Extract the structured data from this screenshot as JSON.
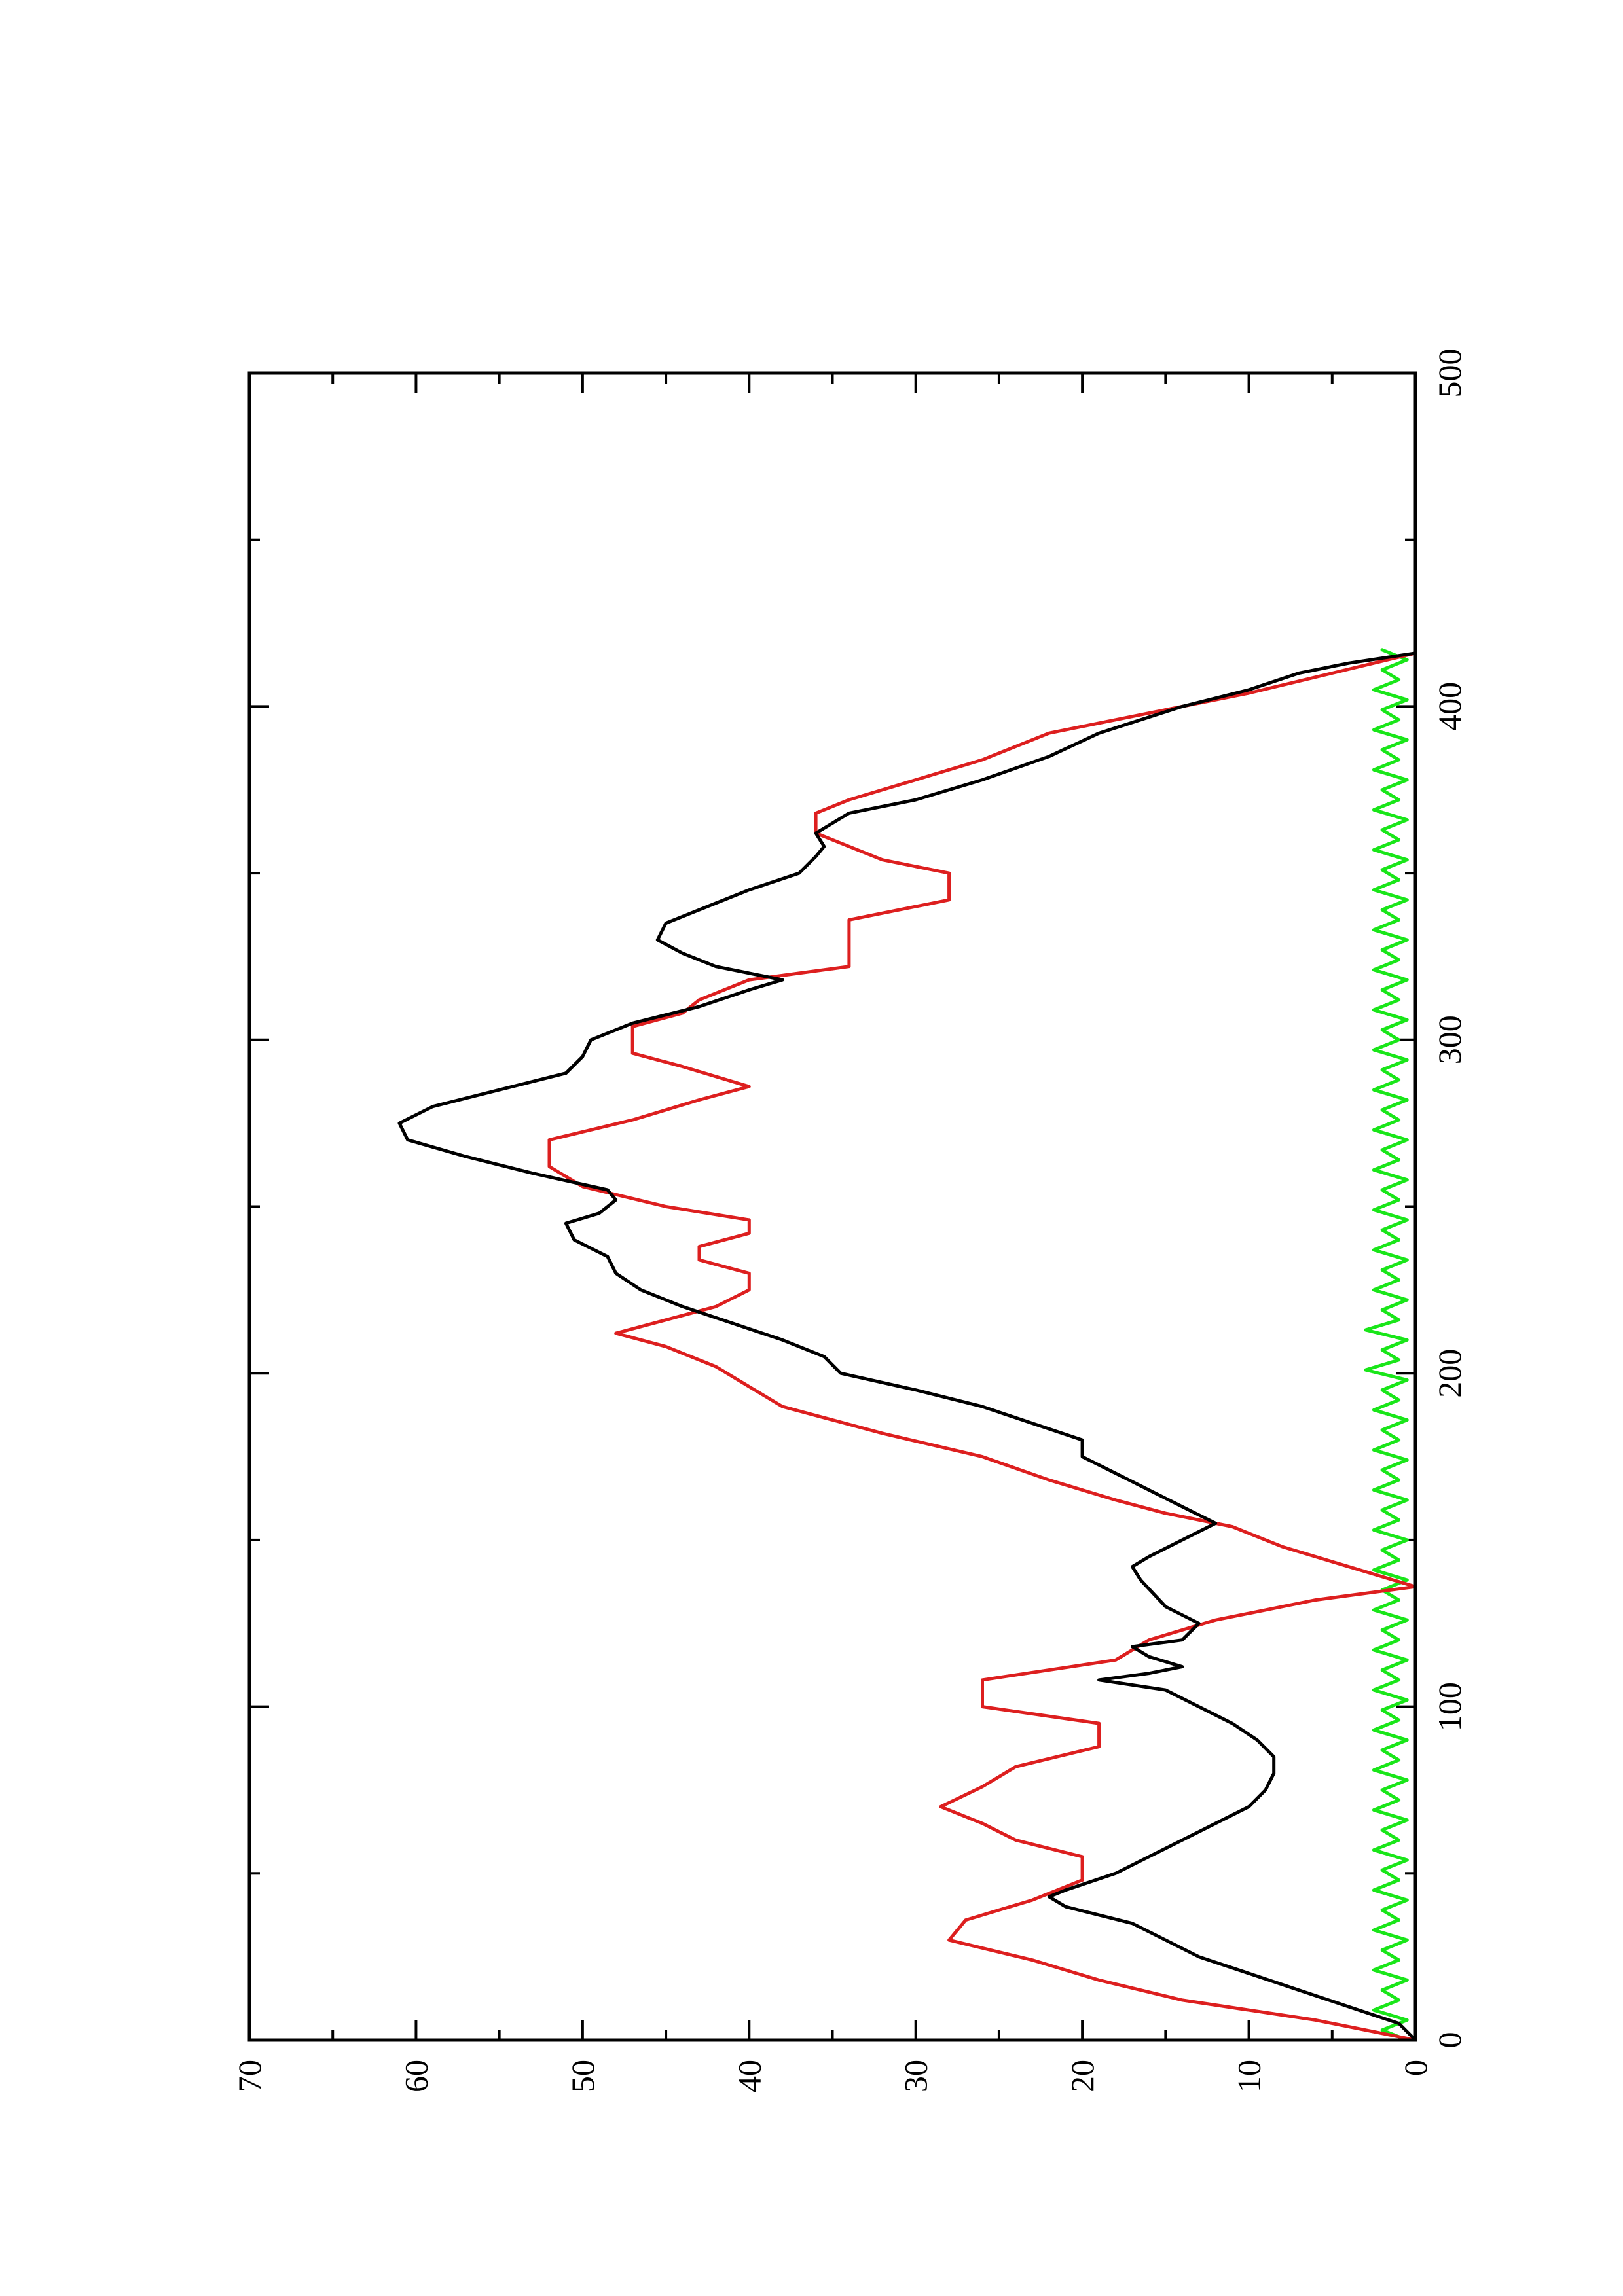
{
  "chart_data": {
    "type": "line",
    "orientation": "rotated-90-ccw",
    "title": "",
    "xlabel": "",
    "ylabel": "",
    "xlim": [
      0,
      500
    ],
    "ylim": [
      0,
      70
    ],
    "x_ticks_major": [
      0,
      100,
      200,
      300,
      400,
      500
    ],
    "x_ticks_minor": [
      50,
      150,
      250,
      350,
      450
    ],
    "y_ticks_major": [
      0,
      10,
      20,
      30,
      40,
      50,
      60,
      70
    ],
    "y_ticks_minor": [
      5,
      15,
      25,
      35,
      45,
      55,
      65
    ],
    "x_tick_labels": [
      "0",
      "100",
      "200",
      "300",
      "400",
      "500"
    ],
    "y_tick_labels": [
      "0",
      "10",
      "20",
      "30",
      "40",
      "50",
      "60",
      "70"
    ],
    "grid": false,
    "legend": "none",
    "series": [
      {
        "color": "#000000",
        "points": [
          [
            0,
            0
          ],
          [
            5,
            1
          ],
          [
            10,
            4
          ],
          [
            15,
            7
          ],
          [
            20,
            10
          ],
          [
            25,
            13
          ],
          [
            30,
            15
          ],
          [
            35,
            17
          ],
          [
            40,
            21
          ],
          [
            43,
            22
          ],
          [
            45,
            21
          ],
          [
            50,
            18
          ],
          [
            55,
            16
          ],
          [
            60,
            14
          ],
          [
            65,
            12
          ],
          [
            70,
            10
          ],
          [
            75,
            9
          ],
          [
            80,
            8.5
          ],
          [
            85,
            8.5
          ],
          [
            90,
            9.5
          ],
          [
            95,
            11
          ],
          [
            100,
            13
          ],
          [
            105,
            15
          ],
          [
            108,
            19
          ],
          [
            110,
            16
          ],
          [
            112,
            14
          ],
          [
            115,
            16
          ],
          [
            118,
            17
          ],
          [
            120,
            14
          ],
          [
            125,
            13
          ],
          [
            130,
            15
          ],
          [
            138,
            16.5
          ],
          [
            142,
            17
          ],
          [
            145,
            16
          ],
          [
            150,
            14
          ],
          [
            155,
            12
          ],
          [
            160,
            14
          ],
          [
            165,
            16
          ],
          [
            170,
            18
          ],
          [
            175,
            20
          ],
          [
            180,
            20
          ],
          [
            185,
            23
          ],
          [
            190,
            26
          ],
          [
            195,
            30
          ],
          [
            200,
            34.5
          ],
          [
            205,
            35.5
          ],
          [
            210,
            38
          ],
          [
            215,
            41
          ],
          [
            220,
            44
          ],
          [
            225,
            46.5
          ],
          [
            230,
            48
          ],
          [
            235,
            48.5
          ],
          [
            240,
            50.5
          ],
          [
            245,
            51
          ],
          [
            248,
            49
          ],
          [
            252,
            48
          ],
          [
            255,
            48.5
          ],
          [
            260,
            53
          ],
          [
            265,
            57
          ],
          [
            270,
            60.5
          ],
          [
            275,
            61
          ],
          [
            280,
            59
          ],
          [
            285,
            55
          ],
          [
            290,
            51
          ],
          [
            295,
            50
          ],
          [
            300,
            49.5
          ],
          [
            305,
            47
          ],
          [
            310,
            43
          ],
          [
            315,
            40
          ],
          [
            318,
            38
          ],
          [
            322,
            42
          ],
          [
            326,
            44
          ],
          [
            330,
            45.5
          ],
          [
            335,
            45
          ],
          [
            340,
            42.5
          ],
          [
            345,
            40
          ],
          [
            350,
            37
          ],
          [
            355,
            36
          ],
          [
            358,
            35.5
          ],
          [
            362,
            36
          ],
          [
            368,
            34
          ],
          [
            372,
            30
          ],
          [
            378,
            26
          ],
          [
            385,
            22
          ],
          [
            392,
            19
          ],
          [
            400,
            14
          ],
          [
            405,
            10
          ],
          [
            410,
            7
          ],
          [
            413,
            4
          ],
          [
            416,
            0
          ]
        ]
      },
      {
        "color": "#dd1f1f",
        "points": [
          [
            0,
            0
          ],
          [
            6,
            6
          ],
          [
            12,
            14
          ],
          [
            18,
            19
          ],
          [
            24,
            23
          ],
          [
            30,
            28
          ],
          [
            36,
            27
          ],
          [
            42,
            23
          ],
          [
            48,
            20
          ],
          [
            55,
            20
          ],
          [
            60,
            24
          ],
          [
            65,
            26
          ],
          [
            70,
            28.5
          ],
          [
            76,
            26
          ],
          [
            82,
            24
          ],
          [
            88,
            19
          ],
          [
            95,
            19
          ],
          [
            100,
            26
          ],
          [
            108,
            26
          ],
          [
            114,
            18
          ],
          [
            120,
            16
          ],
          [
            126,
            12
          ],
          [
            132,
            6
          ],
          [
            136,
            0
          ],
          [
            142,
            4
          ],
          [
            148,
            8
          ],
          [
            154,
            11
          ],
          [
            158,
            15
          ],
          [
            162,
            18
          ],
          [
            168,
            22
          ],
          [
            175,
            26
          ],
          [
            182,
            32
          ],
          [
            190,
            38
          ],
          [
            196,
            40
          ],
          [
            202,
            42
          ],
          [
            208,
            45
          ],
          [
            212,
            48
          ],
          [
            216,
            45
          ],
          [
            220,
            42
          ],
          [
            225,
            40
          ],
          [
            230,
            40
          ],
          [
            234,
            43
          ],
          [
            238,
            43
          ],
          [
            242,
            40
          ],
          [
            246,
            40
          ],
          [
            250,
            45
          ],
          [
            256,
            50
          ],
          [
            262,
            52
          ],
          [
            270,
            52
          ],
          [
            276,
            47
          ],
          [
            282,
            43
          ],
          [
            286,
            40
          ],
          [
            292,
            44
          ],
          [
            296,
            47
          ],
          [
            304,
            47
          ],
          [
            308,
            44
          ],
          [
            312,
            43
          ],
          [
            318,
            40
          ],
          [
            322,
            34
          ],
          [
            330,
            34
          ],
          [
            336,
            34
          ],
          [
            342,
            28
          ],
          [
            350,
            28
          ],
          [
            354,
            32
          ],
          [
            358,
            34
          ],
          [
            362,
            36
          ],
          [
            368,
            36
          ],
          [
            372,
            34
          ],
          [
            378,
            30
          ],
          [
            384,
            26
          ],
          [
            392,
            22
          ],
          [
            398,
            16
          ],
          [
            404,
            10
          ],
          [
            410,
            5
          ],
          [
            416,
            0
          ]
        ]
      },
      {
        "color": "#19e619",
        "points": [
          [
            0,
            0.5
          ],
          [
            3,
            2
          ],
          [
            6,
            0.5
          ],
          [
            9,
            2.5
          ],
          [
            12,
            1
          ],
          [
            15,
            2
          ],
          [
            18,
            0.5
          ],
          [
            21,
            2.5
          ],
          [
            24,
            1
          ],
          [
            27,
            2
          ],
          [
            30,
            0.5
          ],
          [
            33,
            2.5
          ],
          [
            36,
            1
          ],
          [
            39,
            2
          ],
          [
            42,
            0.5
          ],
          [
            45,
            2.5
          ],
          [
            48,
            1
          ],
          [
            51,
            2
          ],
          [
            54,
            0.5
          ],
          [
            57,
            2.5
          ],
          [
            60,
            1
          ],
          [
            63,
            2
          ],
          [
            66,
            0.5
          ],
          [
            69,
            2.5
          ],
          [
            72,
            1
          ],
          [
            75,
            2
          ],
          [
            78,
            0.5
          ],
          [
            81,
            2.5
          ],
          [
            84,
            1
          ],
          [
            87,
            2
          ],
          [
            90,
            0.5
          ],
          [
            93,
            2.5
          ],
          [
            96,
            1
          ],
          [
            99,
            2
          ],
          [
            102,
            0.5
          ],
          [
            105,
            2.5
          ],
          [
            108,
            1
          ],
          [
            111,
            2
          ],
          [
            114,
            0.5
          ],
          [
            117,
            2.5
          ],
          [
            120,
            1
          ],
          [
            123,
            2
          ],
          [
            126,
            0.5
          ],
          [
            129,
            2.5
          ],
          [
            132,
            1
          ],
          [
            135,
            2
          ],
          [
            138,
            0.5
          ],
          [
            141,
            2.5
          ],
          [
            144,
            1
          ],
          [
            147,
            2
          ],
          [
            150,
            0.5
          ],
          [
            153,
            2.5
          ],
          [
            156,
            1
          ],
          [
            159,
            2
          ],
          [
            162,
            0.5
          ],
          [
            165,
            2.5
          ],
          [
            168,
            1
          ],
          [
            171,
            2
          ],
          [
            174,
            0.5
          ],
          [
            177,
            2.5
          ],
          [
            180,
            1
          ],
          [
            183,
            2
          ],
          [
            186,
            0.5
          ],
          [
            189,
            2.5
          ],
          [
            192,
            1
          ],
          [
            195,
            2
          ],
          [
            198,
            0.5
          ],
          [
            201,
            3
          ],
          [
            204,
            1
          ],
          [
            207,
            2
          ],
          [
            210,
            0.5
          ],
          [
            213,
            3
          ],
          [
            216,
            1
          ],
          [
            219,
            2
          ],
          [
            222,
            0.5
          ],
          [
            225,
            2.5
          ],
          [
            228,
            1
          ],
          [
            231,
            2
          ],
          [
            234,
            0.5
          ],
          [
            237,
            2.5
          ],
          [
            240,
            1
          ],
          [
            243,
            2
          ],
          [
            246,
            0.5
          ],
          [
            249,
            2.5
          ],
          [
            252,
            1
          ],
          [
            255,
            2
          ],
          [
            258,
            0.5
          ],
          [
            261,
            2.5
          ],
          [
            264,
            1
          ],
          [
            267,
            2
          ],
          [
            270,
            0.5
          ],
          [
            273,
            2.5
          ],
          [
            276,
            1
          ],
          [
            279,
            2
          ],
          [
            282,
            0.5
          ],
          [
            285,
            2.5
          ],
          [
            288,
            1
          ],
          [
            291,
            2
          ],
          [
            294,
            0.5
          ],
          [
            297,
            2.5
          ],
          [
            300,
            1
          ],
          [
            303,
            2
          ],
          [
            306,
            0.5
          ],
          [
            309,
            2.5
          ],
          [
            312,
            1
          ],
          [
            315,
            2
          ],
          [
            318,
            0.5
          ],
          [
            321,
            2.5
          ],
          [
            324,
            1
          ],
          [
            327,
            2
          ],
          [
            330,
            0.5
          ],
          [
            333,
            2.5
          ],
          [
            336,
            1
          ],
          [
            339,
            2
          ],
          [
            342,
            0.5
          ],
          [
            345,
            2.5
          ],
          [
            348,
            1
          ],
          [
            351,
            2
          ],
          [
            354,
            0.5
          ],
          [
            357,
            2.5
          ],
          [
            360,
            1
          ],
          [
            363,
            2
          ],
          [
            366,
            0.5
          ],
          [
            369,
            2.5
          ],
          [
            372,
            1
          ],
          [
            375,
            2
          ],
          [
            378,
            0.5
          ],
          [
            381,
            2.5
          ],
          [
            384,
            1
          ],
          [
            387,
            2
          ],
          [
            390,
            0.5
          ],
          [
            393,
            2.5
          ],
          [
            396,
            1
          ],
          [
            399,
            2
          ],
          [
            402,
            0.5
          ],
          [
            405,
            2.5
          ],
          [
            408,
            1
          ],
          [
            411,
            2
          ],
          [
            414,
            0.5
          ],
          [
            417,
            2
          ]
        ]
      }
    ]
  }
}
